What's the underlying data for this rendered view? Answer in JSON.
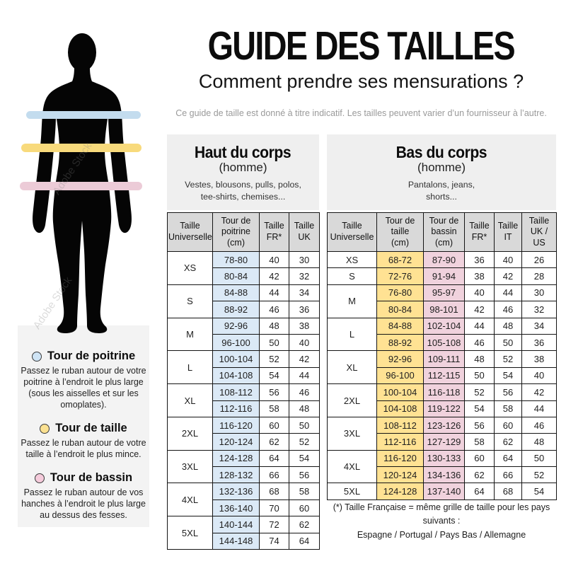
{
  "page": {
    "title": "GUIDE DES TAILLES",
    "subtitle": "Comment prendre ses mensurations ?",
    "disclaimer": "Ce guide de taille est donné à titre indicatif. Les tailles peuvent varier d’un fournisseur à l’autre."
  },
  "figure": {
    "watermark": "Adobe Stock",
    "bands": {
      "chest": {
        "label": "tour de poitrine",
        "color": "#c3dcee"
      },
      "waist": {
        "label": "tour de taille",
        "color": "#f8da7c"
      },
      "hip": {
        "label": "tour de bassin",
        "color": "#eccbd7"
      }
    }
  },
  "legend": {
    "items": [
      {
        "title": "Tour de poitrine",
        "dot_color": "#cfe4f5",
        "text": "Passez le ruban autour de votre\npoitrine à l’endroit le plus large\n(sous les aisselles et sur les\nomoplates)."
      },
      {
        "title": "Tour de taille",
        "dot_color": "#fbe191",
        "text": "Passez le ruban autour de votre\ntaille à l’endroit le plus mince."
      },
      {
        "title": "Tour de bassin",
        "dot_color": "#f5cbdb",
        "text": "Passez le ruban autour de vos\nhanches à l’endroit le plus large\nau dessus des fesses."
      }
    ]
  },
  "upper_table": {
    "title": "Haut du corps",
    "subtitle": "(homme)",
    "description": "Vestes, blousons, pulls, polos,\ntee-shirts, chemises...",
    "headers": [
      "Taille\nUniverselle",
      "Tour de\npoitrine\n(cm)",
      "Taille\nFR*",
      "Taille\nUK"
    ],
    "col_colors": [
      "#dbe9f6",
      null,
      null
    ],
    "groups": [
      {
        "size": "XS",
        "rows": [
          [
            "78-80",
            "40",
            "30"
          ],
          [
            "80-84",
            "42",
            "32"
          ]
        ]
      },
      {
        "size": "S",
        "rows": [
          [
            "84-88",
            "44",
            "34"
          ],
          [
            "88-92",
            "46",
            "36"
          ]
        ]
      },
      {
        "size": "M",
        "rows": [
          [
            "92-96",
            "48",
            "38"
          ],
          [
            "96-100",
            "50",
            "40"
          ]
        ]
      },
      {
        "size": "L",
        "rows": [
          [
            "100-104",
            "52",
            "42"
          ],
          [
            "104-108",
            "54",
            "44"
          ]
        ]
      },
      {
        "size": "XL",
        "rows": [
          [
            "108-112",
            "56",
            "46"
          ],
          [
            "112-116",
            "58",
            "48"
          ]
        ]
      },
      {
        "size": "2XL",
        "rows": [
          [
            "116-120",
            "60",
            "50"
          ],
          [
            "120-124",
            "62",
            "52"
          ]
        ]
      },
      {
        "size": "3XL",
        "rows": [
          [
            "124-128",
            "64",
            "54"
          ],
          [
            "128-132",
            "66",
            "56"
          ]
        ]
      },
      {
        "size": "4XL",
        "rows": [
          [
            "132-136",
            "68",
            "58"
          ],
          [
            "136-140",
            "70",
            "60"
          ]
        ]
      },
      {
        "size": "5XL",
        "rows": [
          [
            "140-144",
            "72",
            "62"
          ],
          [
            "144-148",
            "74",
            "64"
          ]
        ]
      }
    ]
  },
  "lower_table": {
    "title": "Bas du corps",
    "subtitle": "(homme)",
    "description": "Pantalons, jeans,\nshorts...",
    "headers": [
      "Taille\nUniverselle",
      "Tour de\ntaille\n(cm)",
      "Tour de\nbassin\n(cm)",
      "Taille\nFR*",
      "Taille\nIT",
      "Taille\nUK /\nUS"
    ],
    "col_colors": [
      "#ffe293",
      "#f0d2dd",
      null,
      null,
      null
    ],
    "groups": [
      {
        "size": "XS",
        "rows": [
          [
            "68-72",
            "87-90",
            "36",
            "40",
            "26"
          ]
        ]
      },
      {
        "size": "S",
        "rows": [
          [
            "72-76",
            "91-94",
            "38",
            "42",
            "28"
          ]
        ]
      },
      {
        "size": "M",
        "rows": [
          [
            "76-80",
            "95-97",
            "40",
            "44",
            "30"
          ],
          [
            "80-84",
            "98-101",
            "42",
            "46",
            "32"
          ]
        ]
      },
      {
        "size": "L",
        "rows": [
          [
            "84-88",
            "102-104",
            "44",
            "48",
            "34"
          ],
          [
            "88-92",
            "105-108",
            "46",
            "50",
            "36"
          ]
        ]
      },
      {
        "size": "XL",
        "rows": [
          [
            "92-96",
            "109-111",
            "48",
            "52",
            "38"
          ],
          [
            "96-100",
            "112-115",
            "50",
            "54",
            "40"
          ]
        ]
      },
      {
        "size": "2XL",
        "rows": [
          [
            "100-104",
            "116-118",
            "52",
            "56",
            "42"
          ],
          [
            "104-108",
            "119-122",
            "54",
            "58",
            "44"
          ]
        ]
      },
      {
        "size": "3XL",
        "rows": [
          [
            "108-112",
            "123-126",
            "56",
            "60",
            "46"
          ],
          [
            "112-116",
            "127-129",
            "58",
            "62",
            "48"
          ]
        ]
      },
      {
        "size": "4XL",
        "rows": [
          [
            "116-120",
            "130-133",
            "60",
            "64",
            "50"
          ],
          [
            "120-124",
            "134-136",
            "62",
            "66",
            "52"
          ]
        ]
      },
      {
        "size": "5XL",
        "rows": [
          [
            "124-128",
            "137-140",
            "64",
            "68",
            "54"
          ]
        ]
      }
    ]
  },
  "footnote": {
    "text": "(*) Taille Française = même grille de taille pour les pays suivants :\nEspagne / Portugal / Pays Bas / Allemagne"
  }
}
